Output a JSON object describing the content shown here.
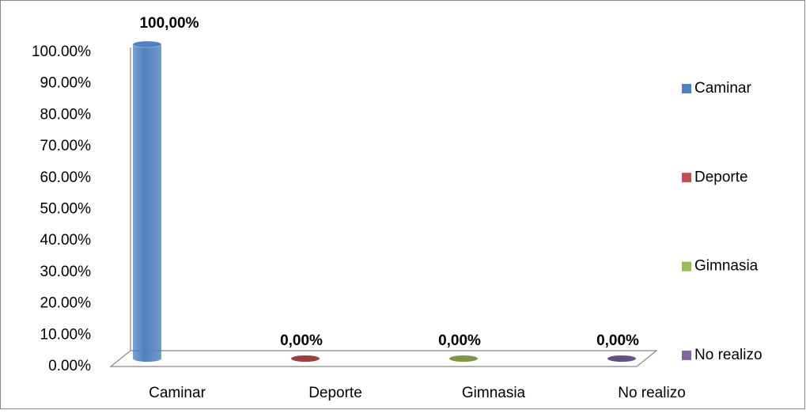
{
  "chart_data": {
    "type": "bar3d",
    "categories": [
      "Caminar",
      "Deporte",
      "Gimnasia",
      "No realizo"
    ],
    "values": [
      100,
      0,
      0,
      0
    ],
    "value_labels": [
      "100,00%",
      "0,00%",
      "0,00%",
      "0,00%"
    ],
    "colors": [
      "#4f81bd",
      "#c0504d",
      "#9bbb59",
      "#8064a2"
    ],
    "ylim": [
      0,
      100
    ],
    "yticks": [
      {
        "value": 0,
        "label": "0.00%"
      },
      {
        "value": 10,
        "label": "10.00%"
      },
      {
        "value": 20,
        "label": "20.00%"
      },
      {
        "value": 30,
        "label": "30.00%"
      },
      {
        "value": 40,
        "label": "40.00%"
      },
      {
        "value": 50,
        "label": "50.00%"
      },
      {
        "value": 60,
        "label": "60.00%"
      },
      {
        "value": 70,
        "label": "70.00%"
      },
      {
        "value": 80,
        "label": "80.00%"
      },
      {
        "value": 90,
        "label": "90.00%"
      },
      {
        "value": 100,
        "label": "100.00%"
      }
    ],
    "legend": "right"
  }
}
